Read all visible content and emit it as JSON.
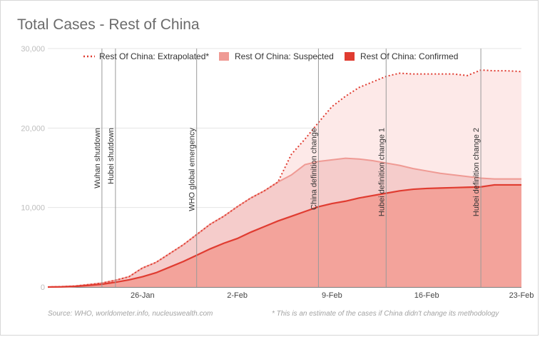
{
  "chart_data": {
    "type": "area",
    "title": "Total Cases - Rest of China",
    "xlabel": "",
    "ylabel": "",
    "ylim": [
      0,
      30000
    ],
    "x_range": [
      "2020-01-19",
      "2020-02-23"
    ],
    "y_ticks": [
      0,
      10000,
      20000,
      30000
    ],
    "y_tick_labels": [
      "0",
      "10,000",
      "20,000",
      "30,000"
    ],
    "x_ticks": [
      "2020-01-26",
      "2020-02-02",
      "2020-02-09",
      "2020-02-16",
      "2020-02-23"
    ],
    "x_tick_labels": [
      "26-Jan",
      "2-Feb",
      "9-Feb",
      "16-Feb",
      "23-Feb"
    ],
    "grid": true,
    "legend_position": "top",
    "x": [
      "2020-01-19",
      "2020-01-20",
      "2020-01-21",
      "2020-01-22",
      "2020-01-23",
      "2020-01-24",
      "2020-01-25",
      "2020-01-26",
      "2020-01-27",
      "2020-01-28",
      "2020-01-29",
      "2020-01-30",
      "2020-01-31",
      "2020-02-01",
      "2020-02-02",
      "2020-02-03",
      "2020-02-04",
      "2020-02-05",
      "2020-02-06",
      "2020-02-07",
      "2020-02-08",
      "2020-02-09",
      "2020-02-10",
      "2020-02-11",
      "2020-02-12",
      "2020-02-13",
      "2020-02-14",
      "2020-02-15",
      "2020-02-16",
      "2020-02-17",
      "2020-02-18",
      "2020-02-19",
      "2020-02-20",
      "2020-02-21",
      "2020-02-22",
      "2020-02-23"
    ],
    "series": [
      {
        "name": "Rest Of China: Extrapolated*",
        "style": "dotted",
        "color": "#e03c31",
        "values": [
          0,
          50,
          120,
          300,
          500,
          850,
          1300,
          2400,
          3100,
          4200,
          5300,
          6600,
          7900,
          8900,
          10100,
          11200,
          12100,
          13200,
          16700,
          18600,
          20700,
          22700,
          24000,
          25100,
          25800,
          26500,
          26900,
          26800,
          26800,
          26800,
          26800,
          26600,
          27300,
          27200,
          27200,
          27100
        ]
      },
      {
        "name": "Rest Of China: Suspected",
        "color": "#ef9a94",
        "values": [
          0,
          50,
          120,
          300,
          500,
          850,
          1300,
          2400,
          3100,
          4200,
          5300,
          6600,
          7900,
          8900,
          10100,
          11200,
          12100,
          13200,
          14100,
          15400,
          15800,
          16000,
          16200,
          16100,
          15900,
          15600,
          15300,
          14900,
          14600,
          14300,
          14100,
          13900,
          13700,
          13600,
          13600,
          13600
        ]
      },
      {
        "name": "Rest Of China: Confirmed",
        "color": "#e03c31",
        "values": [
          0,
          20,
          80,
          200,
          350,
          600,
          900,
          1300,
          1800,
          2500,
          3200,
          4000,
          4800,
          5500,
          6100,
          6900,
          7600,
          8300,
          8900,
          9500,
          10100,
          10500,
          10800,
          11200,
          11500,
          11800,
          12100,
          12300,
          12400,
          12450,
          12500,
          12550,
          12600,
          12850,
          12850,
          12850
        ]
      }
    ],
    "annotations": [
      {
        "date": "2020-01-23",
        "text": "Wuhan shutdown"
      },
      {
        "date": "2020-01-24",
        "text": "Hubei shutdown"
      },
      {
        "date": "2020-01-30",
        "text": "WHO global emergency"
      },
      {
        "date": "2020-02-08",
        "text": "China definition change"
      },
      {
        "date": "2020-02-13",
        "text": "Hubei definition change 1"
      },
      {
        "date": "2020-02-20",
        "text": "Hubei definition change 2"
      }
    ]
  },
  "footer": {
    "source": "Source: WHO, worldometer.info, nucleuswealth.com",
    "note": "* This is an estimate of the cases if China didn't change its methodology"
  }
}
